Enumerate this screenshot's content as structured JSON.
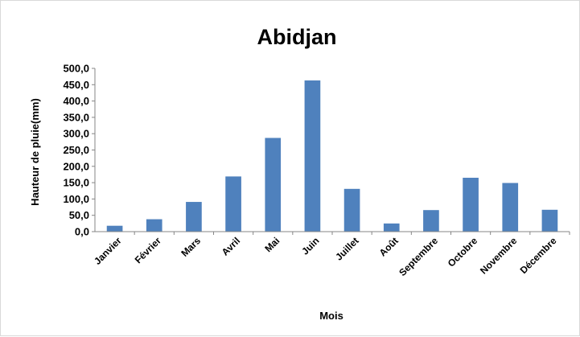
{
  "chart_data": {
    "type": "bar",
    "title": "Abidjan",
    "xlabel": "Mois",
    "ylabel": "Hauteur de pluie(mm)",
    "categories": [
      "Janvier",
      "Février",
      "Mars",
      "Avril",
      "Mai",
      "Juin",
      "Juillet",
      "Août",
      "Septembre",
      "Octobre",
      "Novembre",
      "Décembre"
    ],
    "values": [
      18,
      38,
      91,
      169,
      287,
      463,
      131,
      25,
      66,
      165,
      149,
      67
    ],
    "ylim": [
      0,
      500
    ],
    "yticks": [
      "0,0",
      "50,0",
      "100,0",
      "150,0",
      "200,0",
      "250,0",
      "300,0",
      "350,0",
      "400,0",
      "450,0",
      "500,0"
    ],
    "grid": false,
    "legend": "none",
    "bar_color": "#4f81bd"
  }
}
